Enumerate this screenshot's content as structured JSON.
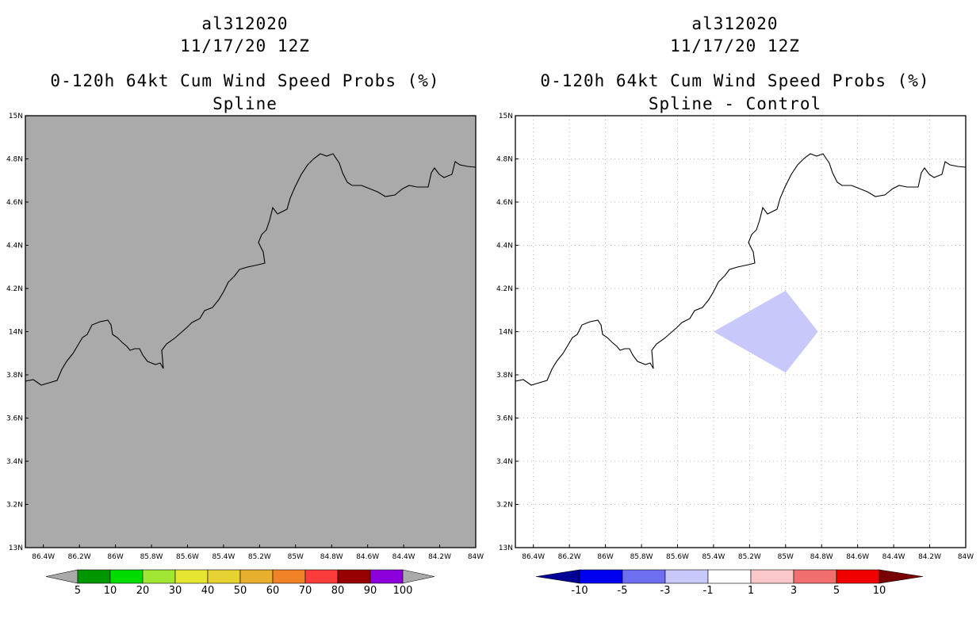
{
  "panels": [
    {
      "id": "left",
      "titles": [
        "al312020",
        "11/17/20 12Z",
        "0-120h 64kt Cum Wind Speed Probs (%)",
        "Spline"
      ],
      "background": "#aaaaaa",
      "grid": false,
      "colorbar": {
        "labels": [
          "5",
          "10",
          "20",
          "30",
          "40",
          "50",
          "60",
          "70",
          "80",
          "90",
          "100"
        ],
        "colors": [
          "#009600",
          "#00dc00",
          "#a0e632",
          "#e6e632",
          "#e6d232",
          "#e6af2d",
          "#f08228",
          "#fa3c3c",
          "#960000",
          "#8c00dc"
        ],
        "under_color": "#aaaaaa",
        "over_color": "#aaaaaa"
      }
    },
    {
      "id": "right",
      "titles": [
        "al312020",
        "11/17/20 12Z",
        "0-120h 64kt Cum Wind Speed Probs (%)",
        "Spline - Control"
      ],
      "background": "#ffffff",
      "grid": true,
      "highlight": {
        "color": "#c8c8fa",
        "description_lon_lat": [
          [
            -85.4,
            14.0
          ],
          [
            -85.0,
            14.19
          ],
          [
            -84.82,
            14.0
          ],
          [
            -85.0,
            13.81
          ]
        ]
      },
      "colorbar": {
        "labels": [
          "-10",
          "-5",
          "-3",
          "-1",
          "1",
          "3",
          "5",
          "10"
        ],
        "colors": [
          "#0000f0",
          "#6e6ef0",
          "#c8c8fa",
          "#ffffff",
          "#fac8c8",
          "#f06e6e",
          "#f00000"
        ],
        "under_color": "#000096",
        "over_color": "#780000"
      }
    }
  ],
  "lat_labels": [
    "15N",
    "4.8N",
    "4.6N",
    "4.4N",
    "4.2N",
    "14N",
    "3.8N",
    "3.6N",
    "3.4N",
    "3.2N",
    "13N"
  ],
  "lon_labels": [
    "86.4W",
    "86.2W",
    "86W",
    "85.8W",
    "85.6W",
    "85.4W",
    "85.2W",
    "85W",
    "84.8W",
    "84.6W",
    "84.4W",
    "84.2W",
    "84W"
  ],
  "coastline_color": "#000000"
}
